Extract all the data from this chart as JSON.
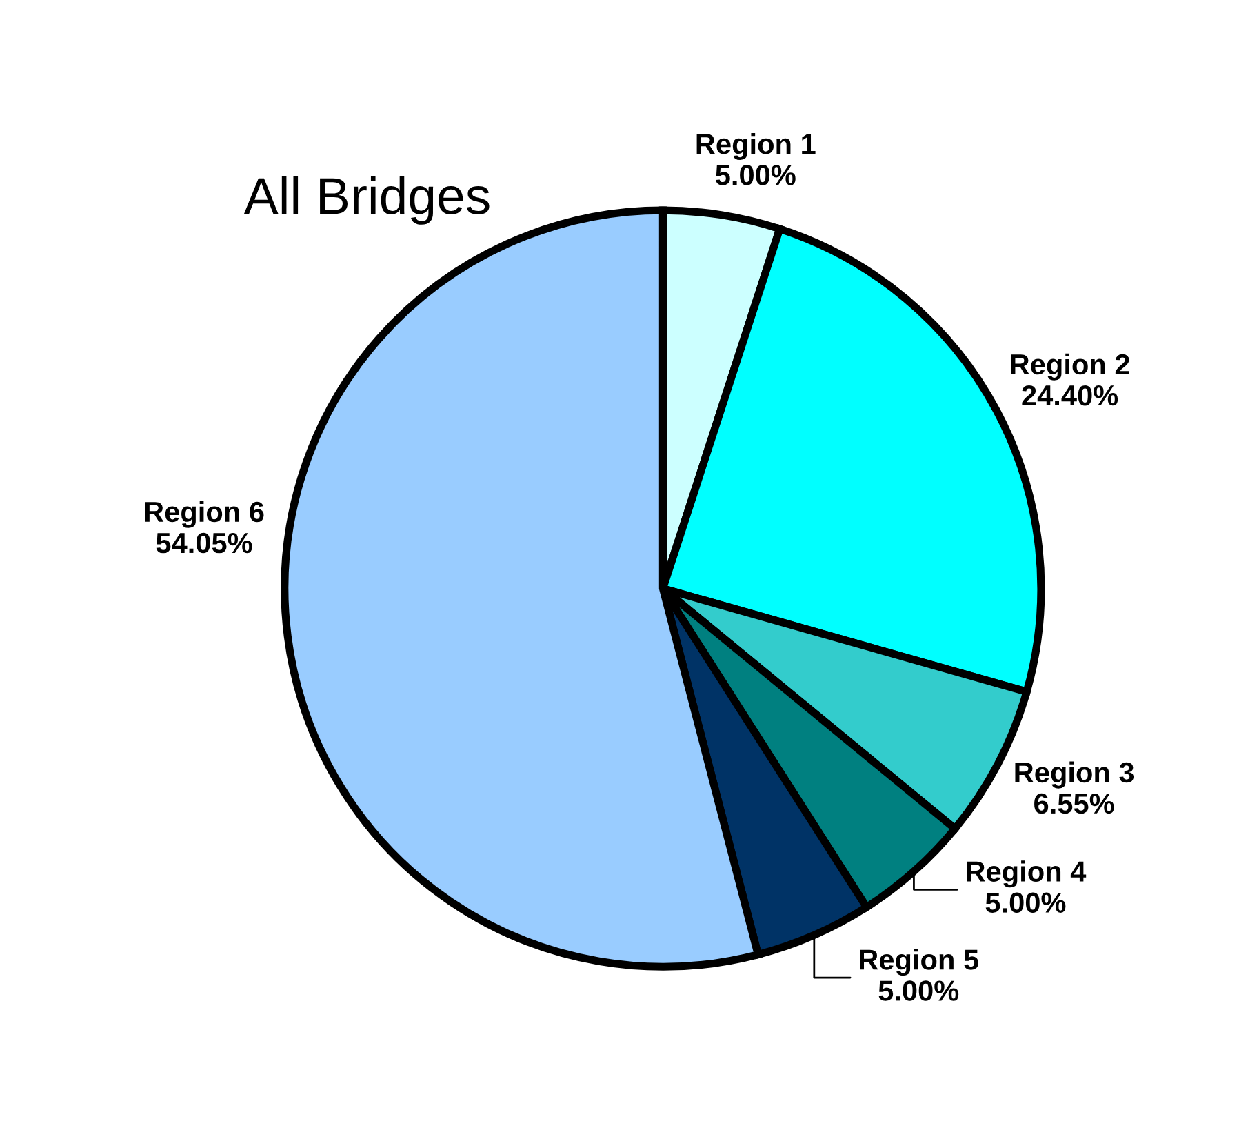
{
  "chart_data": {
    "type": "pie",
    "title": "All Bridges",
    "categories": [
      "Region 1",
      "Region 2",
      "Region 3",
      "Region 4",
      "Region 5",
      "Region 6"
    ],
    "values": [
      5.0,
      24.4,
      6.55,
      5.0,
      5.0,
      54.05
    ],
    "colors": [
      "#ccffff",
      "#00ffff",
      "#33cccc",
      "#008080",
      "#003366",
      "#99ccff"
    ],
    "value_labels": [
      "5.00%",
      "24.40%",
      "6.55%",
      "5.00%",
      "5.00%",
      "54.05%"
    ],
    "legend": false
  }
}
